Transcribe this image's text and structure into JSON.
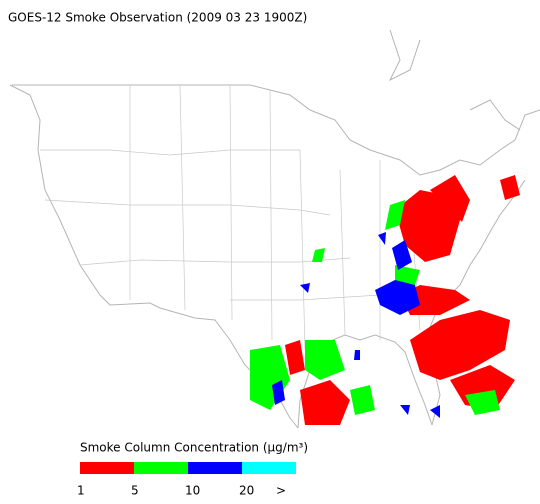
{
  "title": "GOES-12 Smoke Observation (2009 03 23  1900Z)",
  "colorbar": {
    "label": "Smoke Column Concentration (μg/m³)",
    "bins": [
      1,
      5,
      10,
      20
    ],
    "overflow_label": ">",
    "colors": [
      "#ff0000",
      "#00ff00",
      "#0000ff",
      "#00ffff"
    ]
  }
}
